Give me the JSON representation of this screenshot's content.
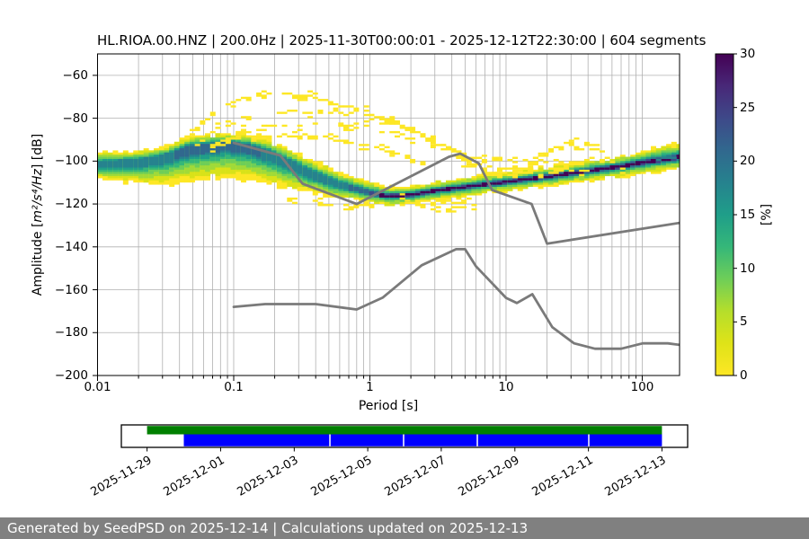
{
  "figure": {
    "title": "HL.RIOA.00.HNZ | 200.0Hz | 2025-11-30T00:00:01 - 2025-12-12T22:30:00 | 604 segments"
  },
  "footer": {
    "text": "Generated by SeedPSD on 2025-12-14 | Calculations updated on 2025-12-13",
    "bg_color": "#808080",
    "text_color": "#ffffff"
  },
  "chart_data": {
    "type": "heatmap",
    "subtype": "ppsd-probability-density",
    "title": "HL.RIOA.00.HNZ | 200.0Hz | 2025-11-30T00:00:01 - 2025-12-12T22:30:00 | 604 segments",
    "xlabel": "Period [s]",
    "ylabel": {
      "prefix": "Amplitude [",
      "math": "m²/s⁴/Hz",
      "suffix": "] [dB]"
    },
    "xscale": "log",
    "xlim": [
      0.01,
      188
    ],
    "ylim": [
      -200,
      -50
    ],
    "x_ticks": [
      {
        "v": 0.01,
        "label": "0.01"
      },
      {
        "v": 0.1,
        "label": "0.1"
      },
      {
        "v": 1,
        "label": "1"
      },
      {
        "v": 10,
        "label": "10"
      },
      {
        "v": 100,
        "label": "100"
      }
    ],
    "y_ticks": [
      {
        "v": -60,
        "label": "−60"
      },
      {
        "v": -80,
        "label": "−80"
      },
      {
        "v": -100,
        "label": "−100"
      },
      {
        "v": -120,
        "label": "−120"
      },
      {
        "v": -140,
        "label": "−140"
      },
      {
        "v": -160,
        "label": "−160"
      },
      {
        "v": -180,
        "label": "−180"
      },
      {
        "v": -200,
        "label": "−200"
      }
    ],
    "grid": {
      "color": "#b0b0b0",
      "x_minor": true,
      "y_minor": false
    },
    "colorbar": {
      "label": "[%]",
      "min": 0,
      "max": 30,
      "ticks": [
        0,
        5,
        10,
        15,
        20,
        25,
        30
      ],
      "colormap": "viridis_r",
      "gradient_top_to_bottom": [
        "#440154",
        "#482878",
        "#3e4989",
        "#31688e",
        "#26828e",
        "#1f9e89",
        "#35b779",
        "#6ece58",
        "#b5de2b",
        "#dfe318",
        "#fde725"
      ]
    },
    "density_levels": {
      "colors": [
        "#fde725",
        "#d8e219",
        "#a0da39",
        "#6ece58",
        "#35b779",
        "#1f9e89",
        "#26828e",
        "#31688e",
        "#3e4989",
        "#440154"
      ],
      "widths": [
        1.0,
        0.84,
        0.7,
        0.56,
        0.44,
        0.34,
        0.26,
        0.2,
        0.16,
        0.13
      ]
    },
    "density_band_samples": [
      [
        0.01,
        -101.5,
        5.5,
        7.5,
        6
      ],
      [
        0.014,
        -101.0,
        5.5,
        8.5,
        6
      ],
      [
        0.02,
        -100.3,
        5.0,
        10.0,
        6
      ],
      [
        0.03,
        -98.5,
        5.0,
        13.0,
        6
      ],
      [
        0.048,
        -94.0,
        6.0,
        16.0,
        7
      ],
      [
        0.09,
        -92.0,
        5.5,
        16.0,
        7
      ],
      [
        0.13,
        -93.5,
        6.0,
        15.5,
        7
      ],
      [
        0.19,
        -97.0,
        6.5,
        14.5,
        6
      ],
      [
        0.3,
        -103.0,
        6.5,
        11.0,
        6
      ],
      [
        0.41,
        -107.0,
        6.5,
        8.6,
        6
      ],
      [
        0.6,
        -111.0,
        6.0,
        6.5,
        6
      ],
      [
        0.88,
        -114.0,
        5.4,
        4.4,
        7
      ],
      [
        1.3,
        -116.3,
        4.5,
        4.5,
        9
      ],
      [
        2.0,
        -115.8,
        4.0,
        4.5,
        9
      ],
      [
        3.0,
        -113.8,
        4.0,
        4.5,
        9
      ],
      [
        5.0,
        -112.0,
        4.2,
        4.5,
        9
      ],
      [
        8.0,
        -110.5,
        4.5,
        4.5,
        9
      ],
      [
        13,
        -108.8,
        4.5,
        4.5,
        9
      ],
      [
        22,
        -107.0,
        4.5,
        4.5,
        9
      ],
      [
        40,
        -104.5,
        4.5,
        5.0,
        9
      ],
      [
        70,
        -102.5,
        5.0,
        5.0,
        9
      ],
      [
        120,
        -100.0,
        6.0,
        5.5,
        9
      ],
      [
        188,
        -98.3,
        7.0,
        5.5,
        9
      ]
    ],
    "event_curves": [
      {
        "drop": 0.28,
        "pts": [
          [
            0.037,
            -92
          ],
          [
            0.062,
            -80
          ],
          [
            0.103,
            -71
          ],
          [
            0.16,
            -68
          ],
          [
            0.32,
            -68.5
          ],
          [
            0.53,
            -72
          ],
          [
            0.88,
            -76
          ],
          [
            1.8,
            -83
          ],
          [
            3.5,
            -93
          ],
          [
            5.5,
            -100
          ],
          [
            7.5,
            -106
          ]
        ]
      },
      {
        "drop": 0.3,
        "pts": [
          [
            0.05,
            -93
          ],
          [
            0.076,
            -85
          ],
          [
            0.12,
            -79
          ],
          [
            0.2,
            -77
          ],
          [
            0.45,
            -76.5
          ],
          [
            0.88,
            -78
          ],
          [
            1.6,
            -82
          ],
          [
            3.0,
            -89
          ],
          [
            5.0,
            -97
          ],
          [
            7.5,
            -104
          ]
        ]
      },
      {
        "drop": 0.32,
        "pts": [
          [
            0.07,
            -92
          ],
          [
            0.11,
            -86
          ],
          [
            0.2,
            -83
          ],
          [
            0.5,
            -82
          ],
          [
            0.9,
            -83
          ],
          [
            1.7,
            -87
          ],
          [
            3.2,
            -93
          ],
          [
            6.0,
            -101
          ]
        ]
      },
      {
        "drop": 0.3,
        "pts": [
          [
            0.06,
            -95
          ],
          [
            0.1,
            -89
          ],
          [
            0.2,
            -87.5
          ],
          [
            0.4,
            -88
          ],
          [
            0.8,
            -91
          ],
          [
            1.5,
            -95.5
          ],
          [
            2.8,
            -101
          ]
        ]
      },
      {
        "drop": 0.25,
        "pts": [
          [
            13,
            -106
          ],
          [
            19,
            -96
          ],
          [
            26,
            -90.5
          ],
          [
            34,
            -89
          ],
          [
            46,
            -93.5
          ],
          [
            65,
            -102
          ],
          [
            80,
            -108
          ]
        ]
      },
      {
        "drop": 0.35,
        "pts": [
          [
            11,
            -107
          ],
          [
            16,
            -99
          ],
          [
            22,
            -93
          ],
          [
            30,
            -91.5
          ],
          [
            40,
            -96
          ],
          [
            55,
            -104
          ]
        ]
      },
      {
        "drop": 0.3,
        "pts": [
          [
            4,
            -98
          ],
          [
            8,
            -98.5
          ],
          [
            16,
            -99
          ],
          [
            30,
            -99.5
          ],
          [
            45,
            -100
          ]
        ]
      },
      {
        "drop": 0.4,
        "pts": [
          [
            4.5,
            -102
          ],
          [
            9,
            -102.5
          ],
          [
            20,
            -103
          ],
          [
            40,
            -103.5
          ]
        ]
      },
      {
        "drop": 0.45,
        "pts": [
          [
            5,
            -104.5
          ],
          [
            10,
            -105
          ],
          [
            25,
            -105.5
          ]
        ]
      },
      {
        "drop": 0.4,
        "pts": [
          [
            1.6,
            -117
          ],
          [
            3,
            -119
          ],
          [
            5,
            -118
          ],
          [
            8,
            -116.5
          ]
        ]
      },
      {
        "drop": 0.5,
        "pts": [
          [
            2,
            -121
          ],
          [
            3.5,
            -122
          ],
          [
            6,
            -120.5
          ]
        ]
      },
      {
        "drop": 0.42,
        "pts": [
          [
            0.22,
            -116
          ],
          [
            0.4,
            -118.5
          ],
          [
            0.7,
            -120.5
          ],
          [
            1.05,
            -119.5
          ]
        ]
      },
      {
        "drop": 0.15,
        "h": 1,
        "color": "#27808e",
        "pts": [
          [
            125,
            -98.4
          ],
          [
            188,
            -98.1
          ]
        ]
      }
    ],
    "noise_models": {
      "color": "#7a7a7a",
      "width": 2.8,
      "nlnm": [
        [
          0.1,
          -168.0
        ],
        [
          0.17,
          -166.7
        ],
        [
          0.4,
          -166.7
        ],
        [
          0.8,
          -169.2
        ],
        [
          1.24,
          -163.7
        ],
        [
          2.4,
          -148.6
        ],
        [
          4.3,
          -141.1
        ],
        [
          5.0,
          -141.1
        ],
        [
          6.0,
          -149.0
        ],
        [
          10.0,
          -163.8
        ],
        [
          12.0,
          -166.2
        ],
        [
          15.6,
          -162.1
        ],
        [
          21.9,
          -177.5
        ],
        [
          31.6,
          -185.0
        ],
        [
          45.0,
          -187.5
        ],
        [
          70.0,
          -187.5
        ],
        [
          101.0,
          -185.0
        ],
        [
          154.0,
          -185.0
        ],
        [
          188.0,
          -185.7
        ]
      ],
      "nhnm": [
        [
          0.1,
          -91.5
        ],
        [
          0.22,
          -97.4
        ],
        [
          0.32,
          -110.5
        ],
        [
          0.8,
          -120.0
        ],
        [
          3.8,
          -98.0
        ],
        [
          4.6,
          -96.5
        ],
        [
          6.3,
          -101.0
        ],
        [
          7.9,
          -113.5
        ],
        [
          15.4,
          -120.0
        ],
        [
          20.0,
          -138.5
        ],
        [
          188.0,
          -128.8
        ]
      ]
    },
    "timeline": {
      "border_color": "#000000",
      "bars": [
        {
          "name": "availability",
          "color": "#008000",
          "f0": 0.0454,
          "f1": 0.9546,
          "row": "top"
        },
        {
          "name": "coverage",
          "color": "#0000ff",
          "f0": 0.1103,
          "f1": 0.9546,
          "row": "bottom"
        }
      ],
      "gap_fractions": [
        0.3683,
        0.4984,
        0.6286,
        0.8254
      ],
      "ticks": [
        {
          "f": 0.0454,
          "label": "2025-11-29"
        },
        {
          "f": 0.1753,
          "label": "2025-12-01"
        },
        {
          "f": 0.3053,
          "label": "2025-12-03"
        },
        {
          "f": 0.4351,
          "label": "2025-12-05"
        },
        {
          "f": 0.5649,
          "label": "2025-12-07"
        },
        {
          "f": 0.6949,
          "label": "2025-12-09"
        },
        {
          "f": 0.8248,
          "label": "2025-12-11"
        },
        {
          "f": 0.9546,
          "label": "2025-12-13"
        }
      ]
    }
  }
}
